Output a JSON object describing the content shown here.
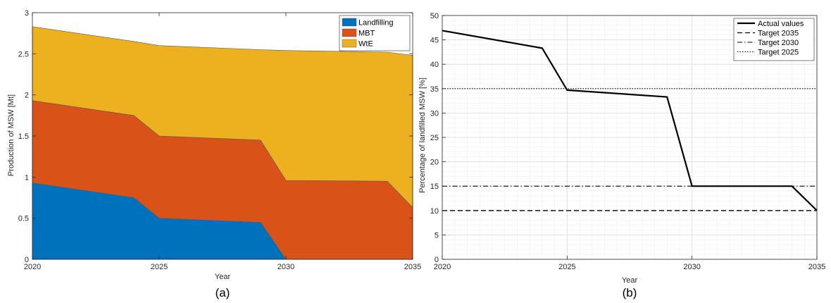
{
  "chart_data": [
    {
      "type": "area",
      "panel_label": "(a)",
      "xlabel": "Year",
      "ylabel": "Production of MSW [Mt]",
      "xlim": [
        2020,
        2035
      ],
      "ylim": [
        0,
        3
      ],
      "xticks": [
        2020,
        2025,
        2030,
        2035
      ],
      "yticks": [
        0,
        0.5,
        1,
        1.5,
        2,
        2.5,
        3
      ],
      "ytick_labels": [
        "0",
        "0.5",
        "1",
        "1.5",
        "2",
        "2.5",
        "3"
      ],
      "stacked": true,
      "legend_position": "top-right",
      "x": [
        2020,
        2024,
        2025,
        2029,
        2030,
        2034,
        2035
      ],
      "series": [
        {
          "name": "Landfilling",
          "color": "#0072BD",
          "values": [
            0.93,
            0.75,
            0.5,
            0.45,
            0.0,
            0.0,
            0.0
          ]
        },
        {
          "name": "MBT",
          "color": "#D95319",
          "values": [
            1.0,
            1.0,
            1.0,
            1.0,
            0.96,
            0.95,
            0.63
          ]
        },
        {
          "name": "WtE",
          "color": "#EDB120",
          "values": [
            0.9,
            0.9,
            1.1,
            1.1,
            1.58,
            1.57,
            1.85
          ]
        }
      ]
    },
    {
      "type": "line",
      "panel_label": "(b)",
      "xlabel": "Year",
      "ylabel": "Percentage of landfilled MSW [%]",
      "xlim": [
        2020,
        2035
      ],
      "ylim": [
        0,
        50
      ],
      "xticks": [
        2020,
        2025,
        2030,
        2035
      ],
      "yticks": [
        0,
        5,
        10,
        15,
        20,
        25,
        30,
        35,
        40,
        45,
        50
      ],
      "grid": true,
      "minor_grid": true,
      "legend_position": "top-right",
      "series": [
        {
          "name": "Actual values",
          "style": "solid",
          "x": [
            2020,
            2024,
            2025,
            2029,
            2030,
            2034,
            2035
          ],
          "values": [
            46.9,
            43.3,
            34.7,
            33.3,
            15.0,
            15.0,
            10.0
          ]
        },
        {
          "name": "Target 2035",
          "style": "dashed",
          "x": [
            2020,
            2035
          ],
          "values": [
            10,
            10
          ]
        },
        {
          "name": "Target 2030",
          "style": "dashdot",
          "x": [
            2020,
            2035
          ],
          "values": [
            15,
            15
          ]
        },
        {
          "name": "Target 2025",
          "style": "dotted",
          "x": [
            2020,
            2035
          ],
          "values": [
            35,
            35
          ]
        }
      ]
    }
  ]
}
